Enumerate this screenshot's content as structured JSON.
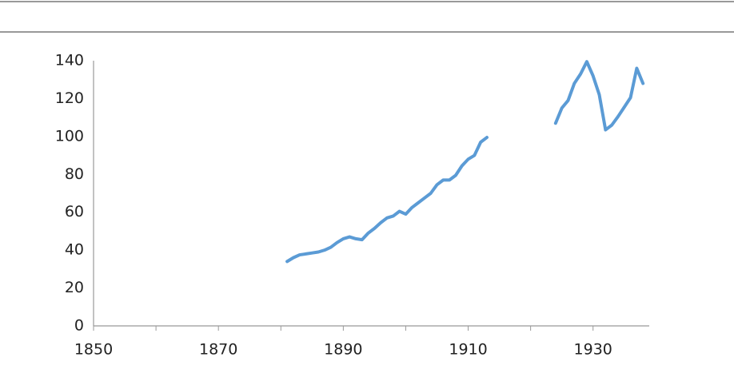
{
  "chart_data": {
    "type": "line",
    "x": [
      1881,
      1882,
      1883,
      1884,
      1885,
      1886,
      1887,
      1888,
      1889,
      1890,
      1891,
      1892,
      1893,
      1894,
      1895,
      1896,
      1897,
      1898,
      1899,
      1900,
      1901,
      1902,
      1903,
      1904,
      1905,
      1906,
      1907,
      1908,
      1909,
      1910,
      1911,
      1912,
      1913,
      1914,
      1915,
      1916,
      1917,
      1918,
      1919,
      1920,
      1921,
      1922,
      1923,
      1924,
      1925,
      1926,
      1927,
      1928,
      1929,
      1930,
      1931,
      1932,
      1933,
      1934,
      1935,
      1936,
      1937,
      1938
    ],
    "series": [
      {
        "color": "#5b9bd5",
        "values": [
          34,
          36,
          37.5,
          38,
          38.5,
          39,
          40,
          41.5,
          44,
          46,
          47,
          46,
          45.5,
          49,
          51.5,
          54.5,
          57,
          58,
          60.5,
          59,
          62.5,
          65,
          67.5,
          70,
          74.5,
          77,
          77,
          79.5,
          84.5,
          88,
          90,
          97,
          99.5,
          null,
          null,
          null,
          null,
          null,
          null,
          null,
          null,
          null,
          null,
          107,
          115,
          119,
          128,
          133,
          139.5,
          132,
          122,
          103.5,
          106,
          110.5,
          115.5,
          120.5,
          136,
          128
        ]
      }
    ],
    "xlim": [
      1850,
      1939
    ],
    "xticks": [
      1850,
      1870,
      1890,
      1910,
      1930
    ],
    "xminorticks": [
      1860,
      1880,
      1900,
      1920
    ],
    "ylim": [
      0,
      140
    ],
    "yticks": [
      0,
      20,
      40,
      60,
      80,
      100,
      120,
      140
    ],
    "grid": false
  }
}
